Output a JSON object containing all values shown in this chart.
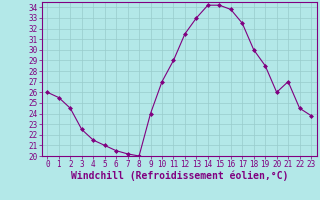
{
  "x": [
    0,
    1,
    2,
    3,
    4,
    5,
    6,
    7,
    8,
    9,
    10,
    11,
    12,
    13,
    14,
    15,
    16,
    17,
    18,
    19,
    20,
    21,
    22,
    23
  ],
  "y": [
    26.0,
    25.5,
    24.5,
    22.5,
    21.5,
    21.0,
    20.5,
    20.2,
    20.0,
    24.0,
    27.0,
    29.0,
    31.5,
    33.0,
    34.2,
    34.2,
    33.8,
    32.5,
    30.0,
    28.5,
    26.0,
    27.0,
    24.5,
    23.8
  ],
  "line_color": "#800080",
  "marker": "D",
  "marker_size": 2,
  "bg_color": "#b3e8e8",
  "grid_color": "#99cccc",
  "xlabel": "Windchill (Refroidissement éolien,°C)",
  "xlabel_color": "#800080",
  "xlabel_fontsize": 7,
  "tick_color": "#800080",
  "tick_fontsize": 5.5,
  "ylim": [
    20,
    34.5
  ],
  "xlim": [
    -0.5,
    23.5
  ],
  "yticks": [
    20,
    21,
    22,
    23,
    24,
    25,
    26,
    27,
    28,
    29,
    30,
    31,
    32,
    33,
    34
  ],
  "xticks": [
    0,
    1,
    2,
    3,
    4,
    5,
    6,
    7,
    8,
    9,
    10,
    11,
    12,
    13,
    14,
    15,
    16,
    17,
    18,
    19,
    20,
    21,
    22,
    23
  ]
}
